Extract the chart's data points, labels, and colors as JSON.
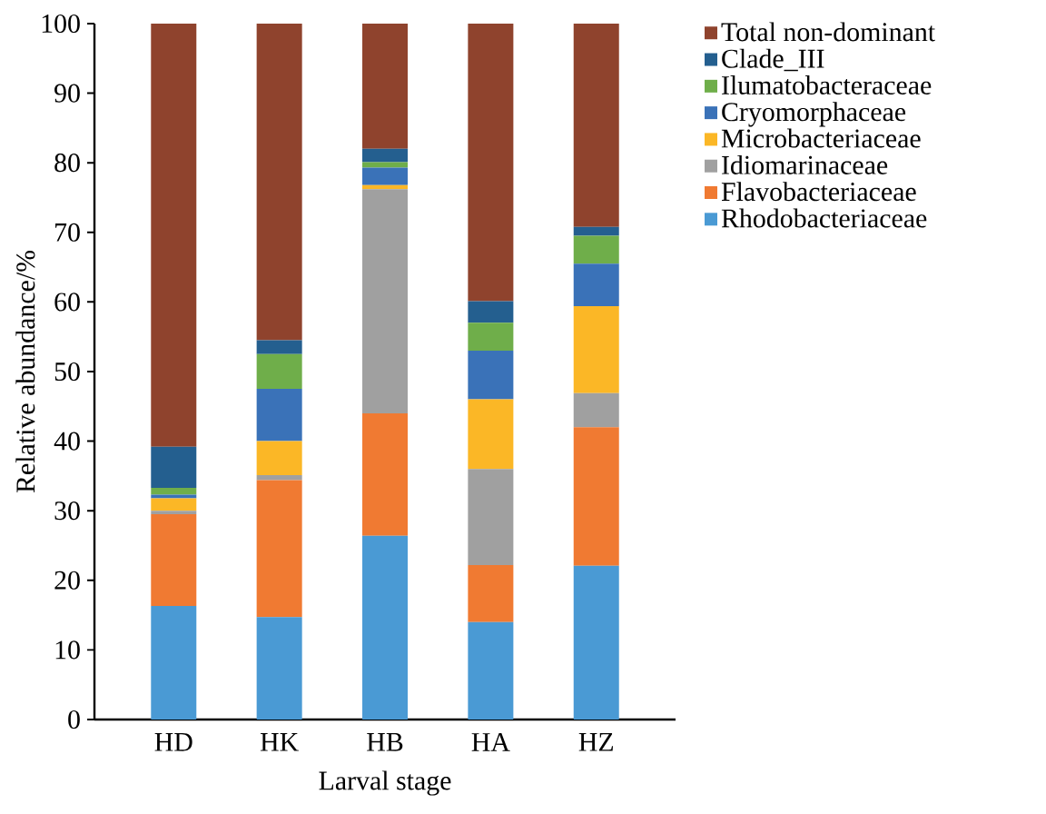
{
  "chart_data": {
    "type": "bar",
    "stacked": true,
    "xlabel": "Larval stage",
    "ylabel": "Relative abundance/%",
    "categories": [
      "HD",
      "HK",
      "HB",
      "HA",
      "HZ"
    ],
    "ylim": [
      0,
      100
    ],
    "yticks": [
      0,
      10,
      20,
      30,
      40,
      50,
      60,
      70,
      80,
      90,
      100
    ],
    "legend": "right",
    "series": [
      {
        "name": "Rhodobacteriaceae",
        "color": "#4a9ad4",
        "values": [
          16.3,
          14.7,
          26.4,
          14.0,
          22.1
        ]
      },
      {
        "name": "Flavobacteriaceae",
        "color": "#f07a32",
        "values": [
          13.2,
          19.7,
          17.6,
          8.2,
          19.9
        ]
      },
      {
        "name": "Idiomarinaceae",
        "color": "#a0a0a0",
        "values": [
          0.5,
          0.7,
          32.2,
          13.8,
          4.9
        ]
      },
      {
        "name": "Microbacteriaceae",
        "color": "#fbb726",
        "values": [
          1.8,
          4.9,
          0.6,
          10.0,
          12.5
        ]
      },
      {
        "name": "Cryomorphaceae",
        "color": "#3a72b8",
        "values": [
          0.5,
          7.5,
          2.5,
          7.0,
          6.1
        ]
      },
      {
        "name": "Ilumatobacteraceae",
        "color": "#6fae4a",
        "values": [
          1.0,
          5.0,
          0.8,
          4.0,
          4.0
        ]
      },
      {
        "name": "Clade_III",
        "color": "#245f8f",
        "values": [
          5.9,
          2.0,
          1.9,
          3.1,
          1.3
        ]
      },
      {
        "name": "Total non-dominant",
        "color": "#8f432d",
        "values": [
          60.8,
          45.5,
          18.0,
          39.9,
          29.2
        ]
      }
    ]
  }
}
